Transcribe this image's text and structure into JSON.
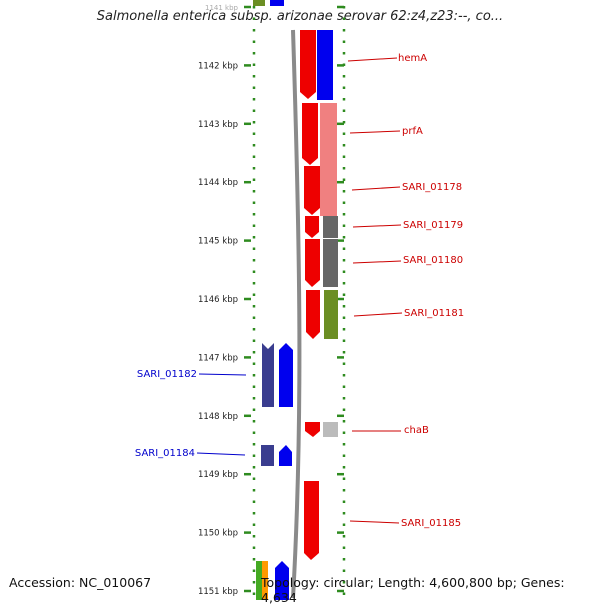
{
  "title": "Salmonella enterica subsp. arizonae serovar 62:z4,z23:--, co...",
  "footer": {
    "accession": "Accession: NC_010067",
    "topology": "Topology: circular; Length: 4,600,800 bp; Genes: 4,634"
  },
  "colors": {
    "axis_green": "#2e8b1f",
    "right_label": "#cc0000",
    "left_label": "#0000cc",
    "forward_red": "#ee0000",
    "forward_blue": "#0000ee",
    "reverse_navy": "#3a3d8f",
    "salmon": "#f08080",
    "gray": "#666666",
    "olive": "#6b8e23"
  },
  "kbp_ticks": [
    "1141 kbp",
    "1142 kbp",
    "1143 kbp",
    "1144 kbp",
    "1145 kbp",
    "1146 kbp",
    "1147 kbp",
    "1148 kbp",
    "1149 kbp",
    "1150 kbp",
    "1151 kbp"
  ],
  "right_genes": [
    {
      "label": "hemA"
    },
    {
      "label": "prfA"
    },
    {
      "label": "SARI_01178"
    },
    {
      "label": "SARI_01179"
    },
    {
      "label": "SARI_01180"
    },
    {
      "label": "SARI_01181"
    },
    {
      "label": "chaB"
    },
    {
      "label": "SARI_01185"
    }
  ],
  "left_genes": [
    {
      "label": "SARI_01182"
    },
    {
      "label": "SARI_01184"
    }
  ]
}
